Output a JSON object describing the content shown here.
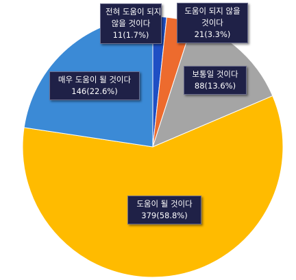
{
  "chart_data": {
    "type": "pie",
    "categories": [
      "전혀 도움이 되지 않을 것이다",
      "도움이 되지 않을 것이다",
      "보통일 것이다",
      "도움이 될 것이다",
      "매우 도움이 될 것이다"
    ],
    "values": [
      11,
      21,
      88,
      379,
      146
    ],
    "percents": [
      "1.7%",
      "3.3%",
      "13.6%",
      "58.8%",
      "22.6%"
    ],
    "colors": [
      "#1f4fc4",
      "#ed6b2e",
      "#a5a5a5",
      "#ffbb00",
      "#3b8ad6"
    ],
    "labels": [
      {
        "line1": "전혀 도움이 되지",
        "line2": "않을 것이다",
        "line3": "11(1.7%)"
      },
      {
        "line1": "도움이 되지 않을",
        "line2": "것이다",
        "line3": "21(3.3%)"
      },
      {
        "line1": "보통일 것이다",
        "line2": "88(13.6%)"
      },
      {
        "line1": "도움이 될 것이다",
        "line2": "379(58.8%)"
      },
      {
        "line1": "매우 도움이 될 것이다",
        "line2": "146(22.6%)"
      }
    ]
  }
}
